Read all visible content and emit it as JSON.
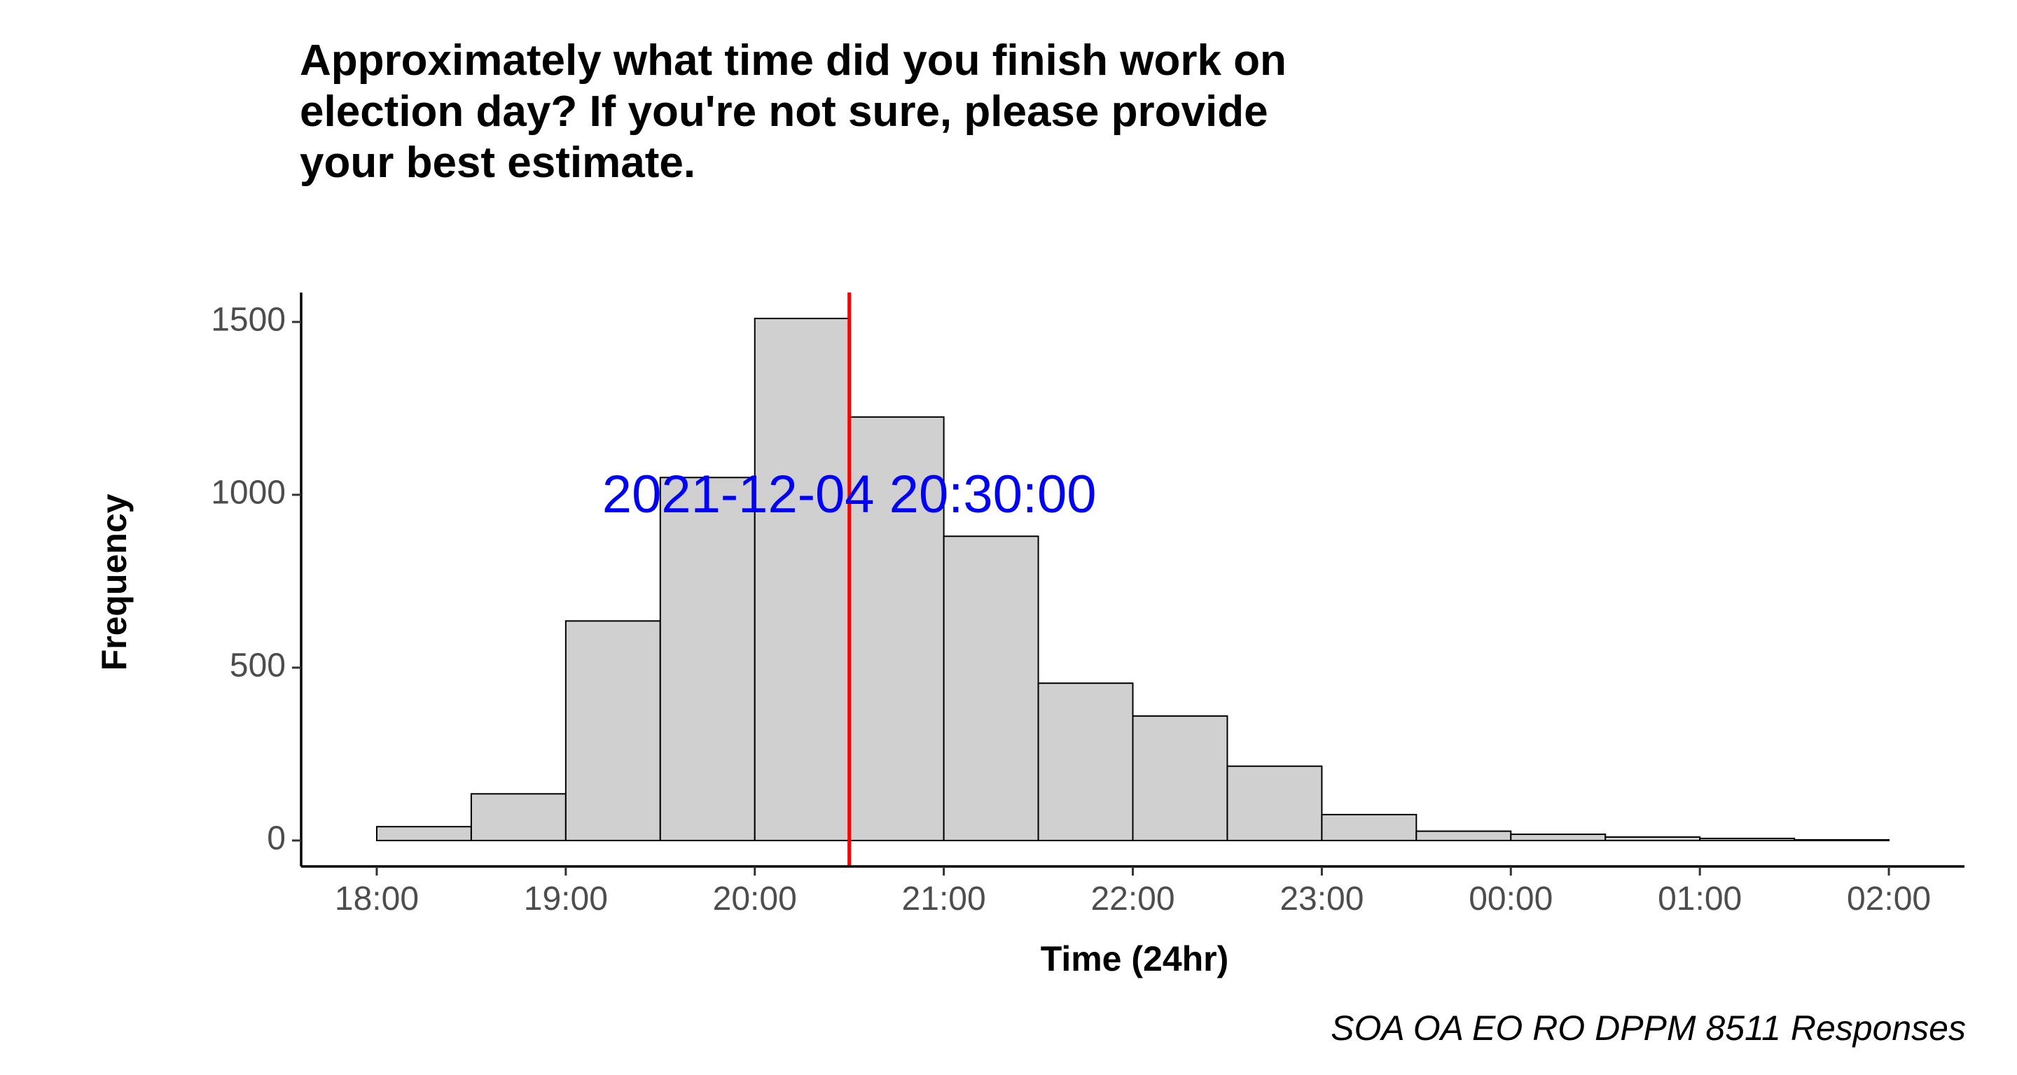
{
  "chart_data": {
    "type": "bar",
    "title_lines": [
      "Approximately what time did you finish work on",
      "election day? If you're not sure, please provide",
      "your best estimate."
    ],
    "xlabel": "Time (24hr)",
    "ylabel": "Frequency",
    "caption": "SOA OA EO RO DPPM 8511 Responses",
    "x_axis": {
      "type": "time",
      "range_hours_from_18": [
        -0.4,
        8.4
      ],
      "ticks": [
        {
          "label": "18:00",
          "value": 0
        },
        {
          "label": "19:00",
          "value": 1
        },
        {
          "label": "20:00",
          "value": 2
        },
        {
          "label": "21:00",
          "value": 3
        },
        {
          "label": "22:00",
          "value": 4
        },
        {
          "label": "23:00",
          "value": 5
        },
        {
          "label": "00:00",
          "value": 6
        },
        {
          "label": "01:00",
          "value": 7
        },
        {
          "label": "02:00",
          "value": 8
        }
      ]
    },
    "y_axis": {
      "ylim": [
        -75,
        1585
      ],
      "ticks": [
        0,
        500,
        1000,
        1500
      ]
    },
    "bins": [
      {
        "start": "18:00",
        "end": "18:30",
        "x0": 0.0,
        "x1": 0.5,
        "value": 40
      },
      {
        "start": "18:30",
        "end": "19:00",
        "x0": 0.5,
        "x1": 1.0,
        "value": 135
      },
      {
        "start": "19:00",
        "end": "19:30",
        "x0": 1.0,
        "x1": 1.5,
        "value": 635
      },
      {
        "start": "19:30",
        "end": "20:00",
        "x0": 1.5,
        "x1": 2.0,
        "value": 1050
      },
      {
        "start": "20:00",
        "end": "20:30",
        "x0": 2.0,
        "x1": 2.5,
        "value": 1510
      },
      {
        "start": "20:30",
        "end": "21:00",
        "x0": 2.5,
        "x1": 3.0,
        "value": 1225
      },
      {
        "start": "21:00",
        "end": "21:30",
        "x0": 3.0,
        "x1": 3.5,
        "value": 880
      },
      {
        "start": "21:30",
        "end": "22:00",
        "x0": 3.5,
        "x1": 4.0,
        "value": 455
      },
      {
        "start": "22:00",
        "end": "22:30",
        "x0": 4.0,
        "x1": 4.5,
        "value": 360
      },
      {
        "start": "22:30",
        "end": "23:00",
        "x0": 4.5,
        "x1": 5.0,
        "value": 215
      },
      {
        "start": "23:00",
        "end": "23:30",
        "x0": 5.0,
        "x1": 5.5,
        "value": 75
      },
      {
        "start": "23:30",
        "end": "00:00",
        "x0": 5.5,
        "x1": 6.0,
        "value": 27
      },
      {
        "start": "00:00",
        "end": "00:30",
        "x0": 6.0,
        "x1": 6.5,
        "value": 18
      },
      {
        "start": "00:30",
        "end": "01:00",
        "x0": 6.5,
        "x1": 7.0,
        "value": 10
      },
      {
        "start": "01:00",
        "end": "01:30",
        "x0": 7.0,
        "x1": 7.5,
        "value": 6
      },
      {
        "start": "01:30",
        "end": "02:00",
        "x0": 7.5,
        "x1": 8.0,
        "value": 2
      }
    ],
    "reference_line": {
      "value": 2.5,
      "label": "2021-12-04 20:30:00",
      "label_y": 990
    },
    "grid": false,
    "colors": {
      "bar_fill": "#d0d0d0",
      "bar_stroke": "#000000",
      "reference_line": "#ff0000",
      "annotation": "#0000ff",
      "axis": "#000000"
    }
  }
}
